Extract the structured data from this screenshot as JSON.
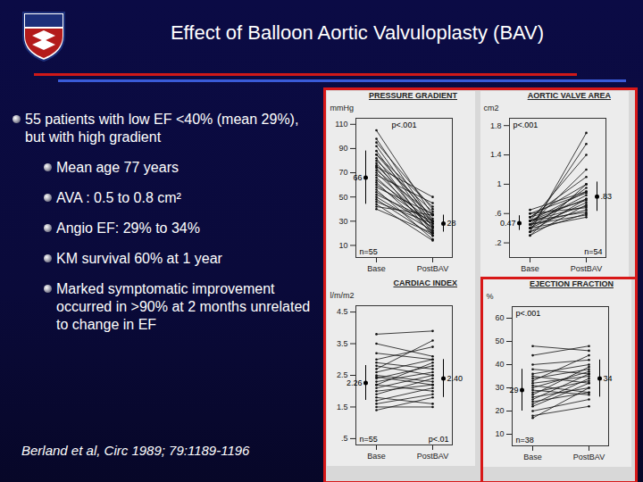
{
  "slide": {
    "title": "Effect of Balloon Aortic Valvuloplasty (BAV)",
    "bullets": [
      {
        "text": "55 patients with low EF <40% (mean 29%), but with high gradient",
        "sub": [
          "Mean age 77 years",
          "AVA : 0.5 to 0.8 cm²",
          "Angio EF: 29% to 34%",
          "KM survival 60% at 1 year",
          "Marked symptomatic improvement occurred in >90% at 2 months unrelated to change in EF"
        ]
      }
    ],
    "citation": "Berland et al, Circ 1989; 79:1189-1196"
  },
  "chart_data": [
    {
      "type": "line",
      "title": "PRESSURE GRADIENT",
      "y_label": "mmHg",
      "color": "#111111",
      "categories": [
        "Base",
        "PostBAV"
      ],
      "patients": [
        [
          105,
          35
        ],
        [
          98,
          30
        ],
        [
          95,
          40
        ],
        [
          92,
          28
        ],
        [
          88,
          25
        ],
        [
          85,
          32
        ],
        [
          82,
          20
        ],
        [
          80,
          38
        ],
        [
          78,
          22
        ],
        [
          76,
          30
        ],
        [
          74,
          18
        ],
        [
          72,
          35
        ],
        [
          70,
          26
        ],
        [
          68,
          45
        ],
        [
          66,
          24
        ],
        [
          64,
          30
        ],
        [
          62,
          20
        ],
        [
          60,
          28
        ],
        [
          58,
          36
        ],
        [
          56,
          15
        ],
        [
          54,
          25
        ],
        [
          52,
          30
        ],
        [
          50,
          22
        ],
        [
          48,
          18
        ],
        [
          46,
          28
        ],
        [
          44,
          14
        ],
        [
          42,
          35
        ],
        [
          40,
          20
        ],
        [
          75,
          50
        ],
        [
          85,
          42
        ]
      ],
      "mean": [
        66,
        28
      ],
      "mean_labels": [
        "66",
        "28"
      ],
      "sd": [
        22,
        7
      ],
      "p_value": "p<.001",
      "n_label": "n=55",
      "ylim": [
        0,
        115
      ],
      "yticks": [
        10,
        30,
        50,
        70,
        90,
        110
      ]
    },
    {
      "type": "line",
      "title": "AORTIC VALVE AREA",
      "y_label": "cm2",
      "color": "#111111",
      "categories": [
        "Base",
        "PostBAV"
      ],
      "patients": [
        [
          0.35,
          1.7
        ],
        [
          0.4,
          1.55
        ],
        [
          0.5,
          1.4
        ],
        [
          0.45,
          1.2
        ],
        [
          0.55,
          1.1
        ],
        [
          0.3,
          1.0
        ],
        [
          0.4,
          0.95
        ],
        [
          0.5,
          0.9
        ],
        [
          0.6,
          0.88
        ],
        [
          0.45,
          0.85
        ],
        [
          0.35,
          0.8
        ],
        [
          0.55,
          0.78
        ],
        [
          0.4,
          0.75
        ],
        [
          0.5,
          0.7
        ],
        [
          0.6,
          0.68
        ],
        [
          0.45,
          0.65
        ],
        [
          0.35,
          0.6
        ],
        [
          0.5,
          0.62
        ],
        [
          0.4,
          0.55
        ],
        [
          0.65,
          0.9
        ],
        [
          0.55,
          1.0
        ],
        [
          0.3,
          0.72
        ],
        [
          0.45,
          0.58
        ],
        [
          0.5,
          0.8
        ]
      ],
      "mean": [
        0.47,
        0.83
      ],
      "mean_labels": [
        "0.47",
        ".83"
      ],
      "sd": [
        0.1,
        0.2
      ],
      "p_value": "p<.001",
      "n_label": "n=54",
      "ylim": [
        0,
        1.9
      ],
      "yticks": [
        {
          "value": 0.2,
          "label": ".2"
        },
        {
          "value": 0.6,
          "label": ".6"
        },
        1,
        1.4,
        1.8
      ]
    },
    {
      "type": "line",
      "title": "CARDIAC INDEX",
      "y_label": "l/m/m2",
      "color": "#111111",
      "categories": [
        "Base",
        "PostBAV"
      ],
      "patients": [
        [
          3.8,
          3.9
        ],
        [
          3.2,
          3.0
        ],
        [
          3.0,
          3.4
        ],
        [
          2.8,
          2.5
        ],
        [
          2.6,
          3.0
        ],
        [
          2.5,
          2.3
        ],
        [
          2.4,
          2.8
        ],
        [
          2.3,
          2.6
        ],
        [
          2.2,
          2.0
        ],
        [
          2.1,
          2.5
        ],
        [
          2.0,
          2.2
        ],
        [
          1.9,
          2.4
        ],
        [
          1.8,
          1.6
        ],
        [
          1.7,
          2.1
        ],
        [
          1.6,
          1.9
        ],
        [
          1.5,
          1.5
        ],
        [
          2.7,
          3.6
        ],
        [
          2.9,
          2.7
        ],
        [
          2.2,
          2.9
        ],
        [
          1.4,
          1.8
        ],
        [
          3.5,
          3.1
        ],
        [
          2.45,
          2.2
        ]
      ],
      "mean": [
        2.26,
        2.4
      ],
      "mean_labels": [
        "2.26",
        "2.40"
      ],
      "sd": [
        0.55,
        0.6
      ],
      "p_value": "p<.01",
      "n_label": "n=55",
      "ylim": [
        0.3,
        4.7
      ],
      "yticks": [
        {
          "value": 0.5,
          "label": ".5"
        },
        1.5,
        2.5,
        3.5,
        4.5
      ]
    },
    {
      "type": "line",
      "title": "EJECTION FRACTION",
      "y_label": "%",
      "color": "#111111",
      "categories": [
        "Base",
        "PostBAV"
      ],
      "patients": [
        [
          48,
          46
        ],
        [
          44,
          48
        ],
        [
          40,
          42
        ],
        [
          38,
          36
        ],
        [
          36,
          40
        ],
        [
          34,
          38
        ],
        [
          32,
          35
        ],
        [
          30,
          37
        ],
        [
          28,
          33
        ],
        [
          26,
          30
        ],
        [
          25,
          36
        ],
        [
          24,
          28
        ],
        [
          22,
          32
        ],
        [
          20,
          25
        ],
        [
          18,
          22
        ],
        [
          17,
          30
        ],
        [
          31,
          28
        ],
        [
          35,
          32
        ],
        [
          27,
          39
        ],
        [
          23,
          34
        ],
        [
          29,
          27
        ],
        [
          33,
          44
        ]
      ],
      "mean": [
        29,
        34
      ],
      "mean_labels": [
        "29",
        "34"
      ],
      "sd": [
        9,
        8
      ],
      "p_value": "p<.001",
      "n_label": "n=38",
      "ylim": [
        5,
        65
      ],
      "yticks": [
        10,
        20,
        30,
        40,
        50,
        60
      ]
    }
  ]
}
